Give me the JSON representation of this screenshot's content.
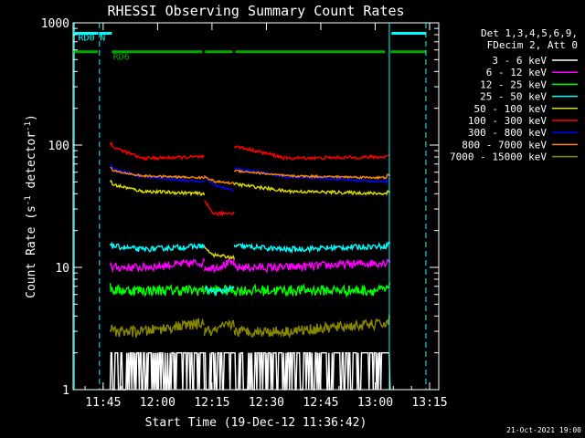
{
  "chart_data": {
    "type": "line",
    "title": "RHESSI Observing Summary Count Rates",
    "xlabel": "Start Time (19-Dec-12 11:36:42)",
    "ylabel": "Count Rate (s",
    "ylabel_sup1": "-1",
    "ylabel_mid": " detector",
    "ylabel_sup2": "-1",
    "ylabel_end": ")",
    "yscale": "log",
    "ylim": [
      1,
      1000
    ],
    "xlim": [
      11.612,
      13.292
    ],
    "x_tick_values": [
      11.75,
      12.0,
      12.25,
      12.5,
      12.75,
      13.0,
      13.25
    ],
    "x_ticks": [
      "11:45",
      "12:00",
      "12:15",
      "12:30",
      "12:45",
      "13:00",
      "13:15"
    ],
    "y_tick_values": [
      1,
      10,
      100,
      1000
    ],
    "y_ticks": [
      "1",
      "10",
      "100",
      "1000"
    ],
    "timestamp": "21-Oct-2021 19:00",
    "legend_header": [
      "Det 1,3,4,5,6,9,",
      "FDecim 2, Att 0"
    ],
    "legend_position": "right",
    "series": [
      {
        "name": "3 - 6 keV",
        "color": "#ffffff",
        "levels": [
          1.5,
          1.6,
          1.4,
          1.8
        ],
        "noise": 0.35
      },
      {
        "name": "6 - 12 keV",
        "color": "#ff00ff",
        "levels": [
          10,
          10,
          9,
          11
        ],
        "noise": 0.08
      },
      {
        "name": "12 - 25 keV",
        "color": "#00ff00",
        "levels": [
          6.5,
          6.5,
          5.5,
          6.5
        ],
        "noise": 0.1
      },
      {
        "name": "25 - 50 keV",
        "color": "#00ffff",
        "levels": [
          15,
          14,
          13,
          15
        ],
        "noise": 0.05
      },
      {
        "name": "50 - 100 keV",
        "color": "#dddd00",
        "levels": [
          48,
          42,
          48,
          40
        ],
        "noise": 0.03
      },
      {
        "name": "100 - 300 keV",
        "color": "#ff0000",
        "levels": [
          98,
          78,
          95,
          80
        ],
        "noise": 0.03
      },
      {
        "name": "300 - 800 keV",
        "color": "#0000ff",
        "levels": [
          65,
          55,
          60,
          50
        ],
        "noise": 0.02
      },
      {
        "name": "800 - 7000 keV",
        "color": "#ff8800",
        "levels": [
          62,
          56,
          58,
          54
        ],
        "noise": 0.02
      },
      {
        "name": "7000 - 15000 keV",
        "color": "#888800",
        "levels": [
          3.0,
          3.0,
          2.5,
          3.5
        ],
        "noise": 0.1
      }
    ],
    "segments": [
      {
        "start": 11.782,
        "end": 12.215
      },
      {
        "start": 12.215,
        "end": 12.352,
        "scale": [
          1,
          1,
          1,
          0.45,
          0.3,
          0.35,
          0.85,
          0.9,
          1
        ]
      },
      {
        "start": 12.352,
        "end": 13.068
      }
    ],
    "flag_bars": [
      {
        "label": "RD0",
        "color": "#00ffff",
        "segments": [
          [
            11.612,
            11.728
          ],
          [
            13.075,
            13.233
          ]
        ],
        "level": 820,
        "label_x": 11.635
      },
      {
        "label": "N",
        "color": "#00ffff",
        "segments": [
          [
            11.732,
            11.79
          ]
        ],
        "level": 820,
        "label_x": 11.735
      },
      {
        "label": "RD6",
        "color": "#00aa00",
        "segments": [
          [
            11.612,
            11.725
          ],
          [
            11.79,
            12.205
          ],
          [
            12.218,
            12.345
          ],
          [
            12.358,
            13.045
          ],
          [
            13.07,
            13.233
          ]
        ],
        "level": 580,
        "label_x": 11.795
      }
    ],
    "saa_lines": [
      11.617,
      13.065
    ],
    "night_lines": [
      11.733,
      13.233
    ]
  }
}
